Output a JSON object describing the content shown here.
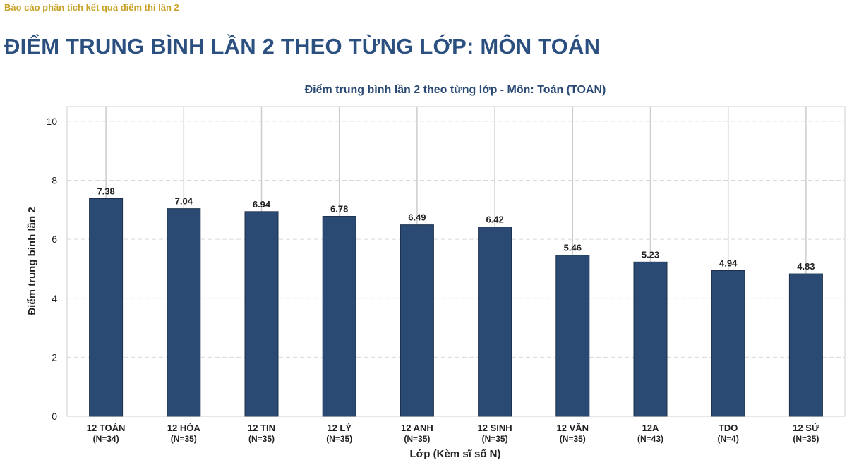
{
  "header": {
    "report_label": "Báo cáo phân tích kết quả điểm thi lần 2",
    "page_title": "ĐIỂM TRUNG BÌNH LẦN 2 THEO TỪNG LỚP: MÔN TOÁN"
  },
  "chart_data": {
    "type": "bar",
    "title": "Điểm trung bình lần 2 theo từng lớp - Môn: Toán (TOAN)",
    "xlabel": "Lớp (Kèm sĩ số N)",
    "ylabel": "Điểm trung bình lần 2",
    "categories": [
      "12 TOÁN",
      "12 HÓA",
      "12 TIN",
      "12 LÝ",
      "12 ANH",
      "12 SINH",
      "12 VĂN",
      "12A",
      "TDO",
      "12 SỬ"
    ],
    "counts": [
      "(N=34)",
      "(N=35)",
      "(N=35)",
      "(N=35)",
      "(N=35)",
      "(N=35)",
      "(N=35)",
      "(N=43)",
      "(N=4)",
      "(N=35)"
    ],
    "values": [
      7.38,
      7.04,
      6.94,
      6.78,
      6.49,
      6.42,
      5.46,
      5.23,
      4.94,
      4.83
    ],
    "value_labels": [
      "7.38",
      "7.04",
      "6.94",
      "6.78",
      "6.49",
      "6.42",
      "5.46",
      "5.23",
      "4.94",
      "4.83"
    ],
    "yticks": [
      0,
      2,
      4,
      6,
      8,
      10
    ],
    "ylim": [
      0,
      10.5
    ],
    "grid": true,
    "bar_color": "#2b4a73"
  }
}
